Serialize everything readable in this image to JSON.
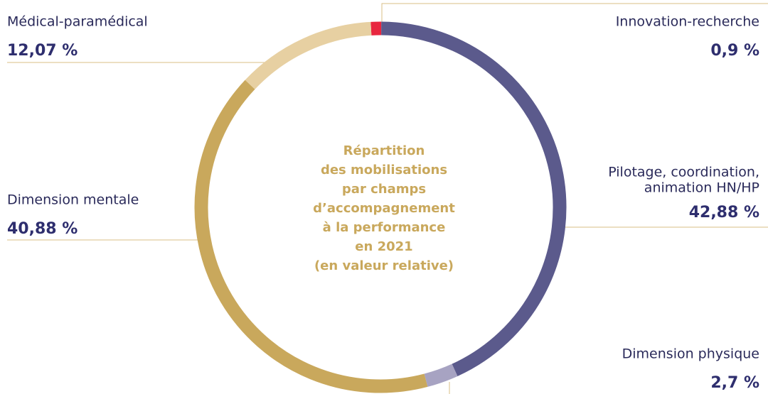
{
  "chart_data": {
    "type": "donut",
    "title": [
      "Répartition",
      "des mobilisations",
      "par champs",
      "d’accompagnement",
      "à la performance",
      "en 2021",
      "(en valeur relative)"
    ],
    "categories": [
      "Innovation-recherche",
      [
        "Pilotage, coordination,",
        "animation HN/HP"
      ],
      "Dimension physique",
      "Dimension mentale",
      "Médical-paramédical"
    ],
    "values": [
      0.9,
      42.88,
      2.7,
      40.88,
      12.07
    ],
    "value_labels": [
      "0,9 %",
      "42,88 %",
      "2,7 %",
      "40,88 %",
      "12,07 %"
    ],
    "colors": [
      "#e8263f",
      "#5b5a8c",
      "#a7a3c2",
      "#c9a85c",
      "#e7d0a2"
    ]
  }
}
